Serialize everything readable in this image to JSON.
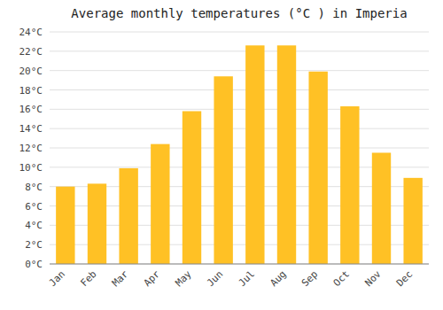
{
  "chart_data": {
    "type": "bar",
    "title": "Average monthly temperatures (°C ) in Imperia",
    "categories": [
      "Jan",
      "Feb",
      "Mar",
      "Apr",
      "May",
      "Jun",
      "Jul",
      "Aug",
      "Sep",
      "Oct",
      "Nov",
      "Dec"
    ],
    "values": [
      8.0,
      8.3,
      9.9,
      12.4,
      15.8,
      19.4,
      22.6,
      22.6,
      19.9,
      16.3,
      11.5,
      8.9
    ],
    "color": "#FFC125",
    "ylim": [
      0,
      24
    ],
    "yticks": [
      {
        "value": 0,
        "label": "0°C"
      },
      {
        "value": 2,
        "label": "2°C"
      },
      {
        "value": 4,
        "label": "4°C"
      },
      {
        "value": 6,
        "label": "6°C"
      },
      {
        "value": 8,
        "label": "8°C"
      },
      {
        "value": 10,
        "label": "10°C"
      },
      {
        "value": 12,
        "label": "12°C"
      },
      {
        "value": 14,
        "label": "14°C"
      },
      {
        "value": 16,
        "label": "16°C"
      },
      {
        "value": 18,
        "label": "18°C"
      },
      {
        "value": 20,
        "label": "20°C"
      },
      {
        "value": 22,
        "label": "22°C"
      },
      {
        "value": 24,
        "label": "24°C"
      }
    ],
    "grid": true
  }
}
